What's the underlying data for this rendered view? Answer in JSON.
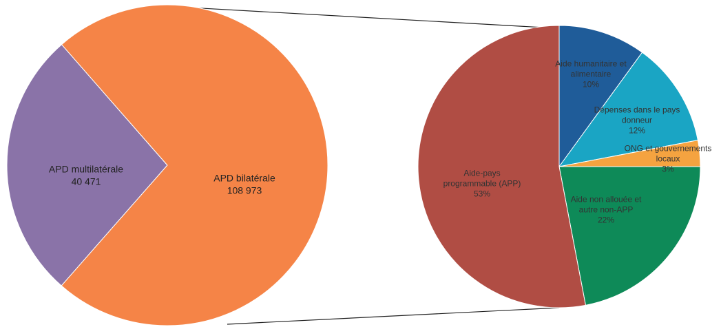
{
  "chart_data": [
    {
      "type": "pie",
      "categories": [
        "APD multilatérale",
        "APD bilatérale"
      ],
      "values": [
        40471,
        108973
      ],
      "value_labels": [
        "40 471",
        "108 973"
      ],
      "colors": [
        "#8a73a8",
        "#f58447"
      ]
    },
    {
      "type": "pie",
      "categories": [
        "Aide humanitaire et alimentaire",
        "Dépenses dans le pays donneur",
        "ONG et gouvernements locaux",
        "Aide non allouée et autre non-APP",
        "Aide-pays programmable (APP)"
      ],
      "values": [
        10,
        12,
        3,
        22,
        53
      ],
      "value_labels": [
        "10%",
        "12%",
        "3%",
        "22%",
        "53%"
      ],
      "colors": [
        "#1f5c99",
        "#1aa5c4",
        "#f5a340",
        "#0e8a58",
        "#b04d44"
      ]
    }
  ]
}
